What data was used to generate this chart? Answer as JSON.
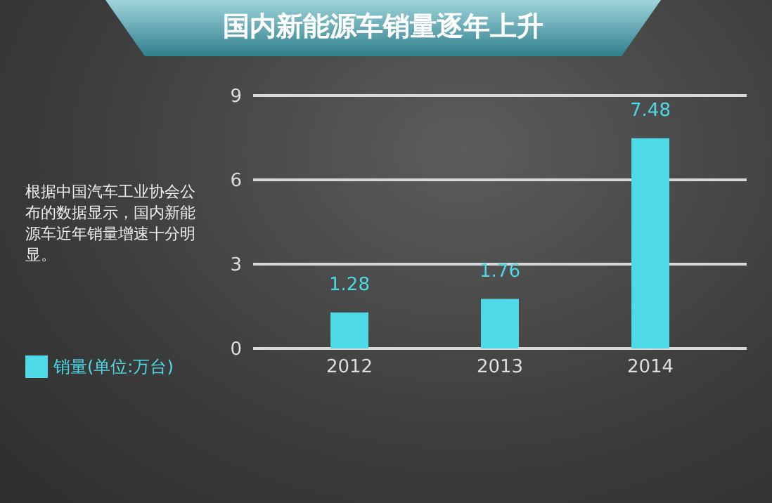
{
  "chart_data": {
    "type": "bar",
    "title": "国内新能源车销量逐年上升",
    "annotations": [
      "根据中国汽车工业协会公布的数据显示，国内新能源车近年销量增速十分明显。"
    ],
    "categories": [
      "2012",
      "2013",
      "2014"
    ],
    "series": [
      {
        "name": "销量(单位:万台)",
        "color": "#4dd9e6",
        "values": [
          1.28,
          1.76,
          7.48
        ]
      }
    ],
    "ylim": [
      0,
      9
    ],
    "yticks": [
      0,
      3,
      6,
      9
    ],
    "grid": "y",
    "legend": "left",
    "data_labels": true
  }
}
